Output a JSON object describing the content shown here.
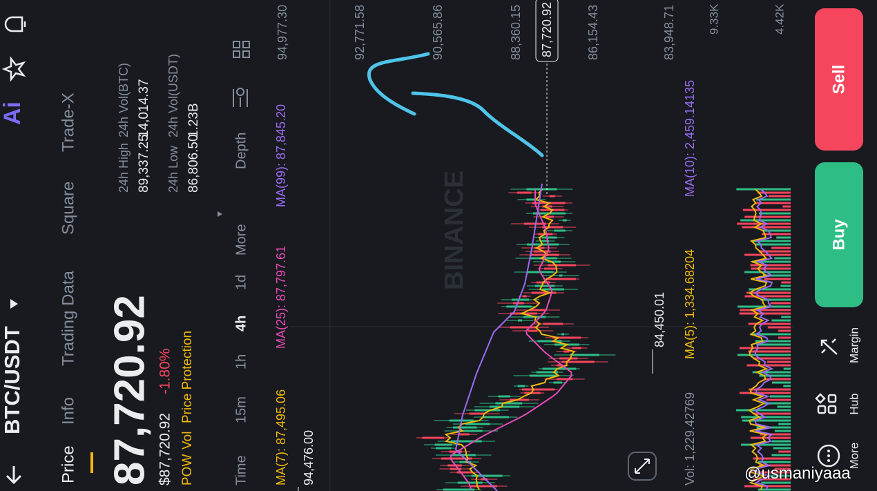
{
  "header": {
    "pair": "BTC/USDT",
    "tabs": [
      "Price",
      "Info",
      "Trading Data",
      "Square",
      "Trade-X"
    ]
  },
  "price": {
    "last": "87,720.92",
    "usd": "$87,720.92",
    "change": "-1.80%",
    "tags": [
      "POW",
      "Vol",
      "Price Protection"
    ]
  },
  "stats": [
    {
      "label": "24h High",
      "value": "89,337.25"
    },
    {
      "label": "24h Vol(BTC)",
      "value": "14,014.37"
    },
    {
      "label": "24h Low",
      "value": "86,806.50"
    },
    {
      "label": "24h Vol(USDT)",
      "value": "1.23B"
    }
  ],
  "intervals": [
    "Time",
    "15m",
    "1h",
    "4h",
    "1d",
    "More",
    "Depth"
  ],
  "ma": [
    "MA(7): 87,495.06",
    "MA(25): 87,797.61",
    "MA(99): 87,845.20"
  ],
  "axis": [
    "94,977.30",
    "92,771.58",
    "90,565.86",
    "88,360.15",
    "86,154.43",
    "83,948.71"
  ],
  "current": "87,720.92",
  "high_marker": "94,476.00",
  "low_marker": "84,450.01",
  "watermark": "BINANCE",
  "volume": {
    "vol": "Vol: 1,229.42769",
    "ma5": "MA(5): 1,334.68204",
    "ma10": "MA(10): 2,459.14135",
    "axis": [
      "9.33K",
      "4.42K"
    ]
  },
  "bottom": {
    "more": "More",
    "hub": "Hub",
    "margin": "Margin",
    "buy": "Buy",
    "sell": "Sell"
  },
  "user": "@usmaniyaaa"
}
